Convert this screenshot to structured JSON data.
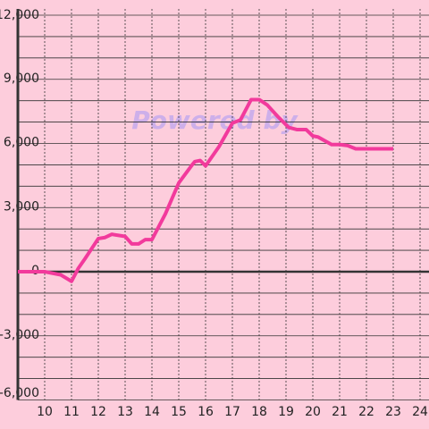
{
  "chart_data": {
    "type": "line",
    "watermark": "Powered by",
    "x": [
      9,
      10,
      10.6,
      11,
      11.25,
      11.5,
      12,
      12.25,
      12.5,
      13,
      13.25,
      13.5,
      13.75,
      14,
      14.5,
      15,
      15.5,
      15.6,
      15.8,
      16,
      16.5,
      17,
      17.3,
      17.7,
      18,
      18.3,
      18.7,
      19.1,
      19.4,
      19.75,
      20,
      20.2,
      20.7,
      21,
      21.3,
      21.6,
      22.3,
      23
    ],
    "series": [
      {
        "color": "#f23a9c",
        "values": [
          0,
          0,
          -150,
          -450,
          150,
          600,
          1550,
          1600,
          1750,
          1650,
          1300,
          1300,
          1500,
          1500,
          2700,
          4150,
          5000,
          5150,
          5200,
          4950,
          5850,
          6950,
          7100,
          8050,
          8050,
          7800,
          7250,
          6750,
          6650,
          6650,
          6350,
          6300,
          5950,
          5950,
          5900,
          5750,
          5750,
          5750
        ]
      }
    ],
    "xlim": [
      9,
      24
    ],
    "xticks": [
      10,
      11,
      12,
      13,
      14,
      15,
      16,
      17,
      18,
      19,
      20,
      21,
      22,
      23,
      24
    ],
    "ylim": [
      -6000,
      12000
    ],
    "yticks": [
      {
        "value": 12000,
        "label": "12,000"
      },
      {
        "value": 9000,
        "label": "9,000"
      },
      {
        "value": 6000,
        "label": "6,000"
      },
      {
        "value": 3000,
        "label": "3,000"
      },
      0,
      {
        "value": -3000,
        "label": "-3,000"
      },
      {
        "value": -6000,
        "label": "-6,000"
      }
    ],
    "y_minor_ticks": [
      -5000,
      -4000,
      -2000,
      -1000,
      1000,
      2000,
      4000,
      5000,
      7000,
      8000,
      10000,
      11000
    ],
    "grid": true
  }
}
